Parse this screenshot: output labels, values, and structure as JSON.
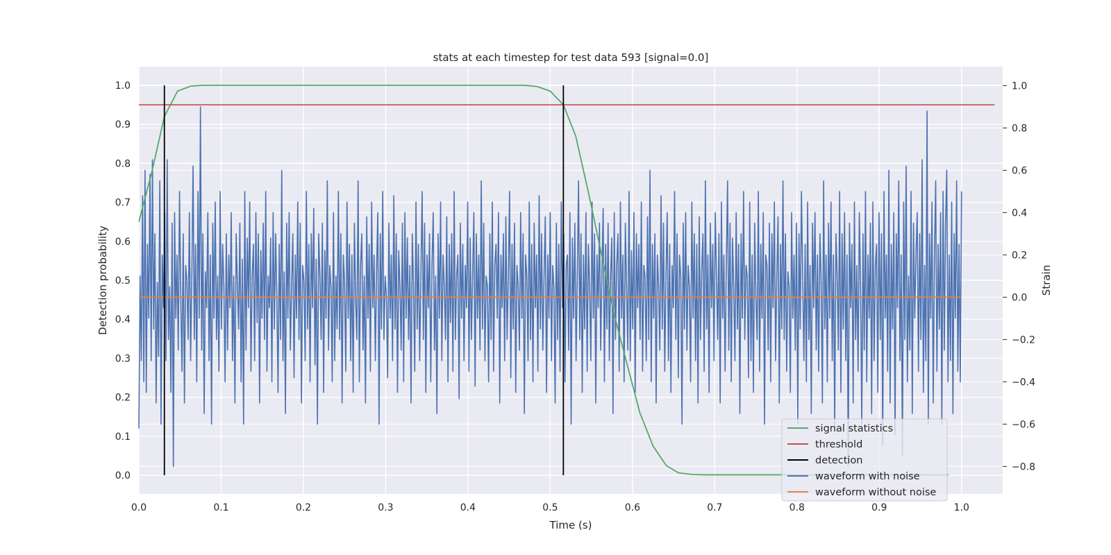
{
  "chart_data": {
    "type": "line",
    "title": "stats at each timestep for test data 593 [signal=0.0]",
    "xlabel": "Time (s)",
    "ylabel": "Detection probability",
    "y2label": "Strain",
    "xlim": [
      0.0,
      1.05
    ],
    "ylim": [
      -0.048,
      1.048
    ],
    "y2lim": [
      -0.93,
      1.09
    ],
    "xticks": [
      0.0,
      0.1,
      0.2,
      0.3,
      0.4,
      0.5,
      0.6,
      0.7,
      0.8,
      0.9,
      1.0
    ],
    "xtick_labels": [
      "0.0",
      "0.1",
      "0.2",
      "0.3",
      "0.4",
      "0.5",
      "0.6",
      "0.7",
      "0.8",
      "0.9",
      "1.0"
    ],
    "yticks": [
      0.0,
      0.1,
      0.2,
      0.3,
      0.4,
      0.5,
      0.6,
      0.7,
      0.8,
      0.9,
      1.0
    ],
    "ytick_labels": [
      "0.0",
      "0.1",
      "0.2",
      "0.3",
      "0.4",
      "0.5",
      "0.6",
      "0.7",
      "0.8",
      "0.9",
      "1.0"
    ],
    "y2ticks": [
      -0.8,
      -0.6,
      -0.4,
      -0.2,
      0.0,
      0.2,
      0.4,
      0.6,
      0.8,
      1.0
    ],
    "y2tick_labels": [
      "−0.8",
      "−0.6",
      "−0.4",
      "−0.2",
      "0.0",
      "0.2",
      "0.4",
      "0.6",
      "0.8",
      "1.0"
    ],
    "grid": true,
    "legend_position": "lower right",
    "series": [
      {
        "name": "signal statistics",
        "color": "#55a868",
        "axis": "left",
        "x": [
          0.0,
          0.016,
          0.031,
          0.047,
          0.063,
          0.078,
          0.094,
          0.2,
          0.3,
          0.4,
          0.469,
          0.484,
          0.5,
          0.516,
          0.531,
          0.547,
          0.563,
          0.578,
          0.594,
          0.609,
          0.625,
          0.641,
          0.656,
          0.672,
          0.688,
          0.75,
          0.85,
          0.95,
          0.984
        ],
        "values": [
          0.65,
          0.78,
          0.92,
          0.985,
          0.998,
          1.0,
          1.0,
          1.0,
          1.0,
          1.0,
          1.0,
          0.997,
          0.985,
          0.95,
          0.87,
          0.72,
          0.56,
          0.41,
          0.28,
          0.16,
          0.075,
          0.025,
          0.006,
          0.002,
          0.001,
          0.001,
          0.001,
          0.001,
          0.001
        ]
      },
      {
        "name": "threshold",
        "color": "#c44e52",
        "axis": "left",
        "x": [
          0.0,
          1.04
        ],
        "values": [
          0.95,
          0.95
        ]
      },
      {
        "name": "detection",
        "color": "#000000",
        "axis": "left",
        "segments": [
          {
            "x": 0.031,
            "from": 0.0,
            "to": 1.0
          },
          {
            "x": 0.516,
            "from": 0.0,
            "to": 1.0
          }
        ]
      },
      {
        "name": "waveform with noise",
        "color": "#4c72b0",
        "axis": "right",
        "x_start": 0.0,
        "x_end": 1.0,
        "values": [
          -0.62,
          0.1,
          -0.3,
          0.48,
          -0.4,
          0.6,
          -0.45,
          0.25,
          -0.1,
          0.58,
          -0.3,
          0.65,
          -0.15,
          0.3,
          -0.5,
          0.07,
          -0.28,
          0.55,
          -0.6,
          0.2,
          -0.05,
          0.4,
          -0.3,
          0.65,
          -0.2,
          0.05,
          -0.45,
          0.35,
          -0.8,
          0.4,
          -0.1,
          0.2,
          -0.25,
          0.5,
          0.0,
          -0.35,
          0.3,
          -0.5,
          0.15,
          0.08,
          -0.2,
          0.4,
          -0.3,
          0.1,
          0.62,
          -0.2,
          0.25,
          -0.4,
          0.5,
          -0.1,
          0.9,
          -0.25,
          0.3,
          -0.55,
          0.12,
          -0.05,
          0.4,
          -0.3,
          0.2,
          -0.6,
          0.35,
          -0.1,
          0.45,
          -0.2,
          0.1,
          -0.35,
          0.5,
          -0.15,
          0.25,
          0.05,
          -0.4,
          0.3,
          -0.25,
          0.2,
          -0.05,
          0.4,
          -0.3,
          0.1,
          -0.5,
          0.3,
          0.06,
          -0.15,
          0.35,
          -0.4,
          0.18,
          -0.6,
          0.5,
          -0.25,
          0.28,
          -0.05,
          0.45,
          -0.35,
          0.1,
          0.25,
          -0.3,
          0.4,
          -0.12,
          0.3,
          -0.5,
          0.22,
          -0.1,
          0.35,
          -0.2,
          0.5,
          -0.35,
          0.1,
          -0.05,
          0.28,
          -0.4,
          0.4,
          -0.15,
          0.3,
          0.02,
          -0.45,
          0.25,
          -0.2,
          0.6,
          -0.3,
          0.12,
          -0.55,
          0.35,
          -0.1,
          0.4,
          -0.25,
          0.05,
          0.3,
          -0.38,
          0.2,
          -0.1,
          0.45,
          -0.2,
          0.35,
          -0.5,
          0.15,
          0.08,
          -0.3,
          0.5,
          -0.15,
          0.25,
          -0.4,
          0.3,
          -0.05,
          0.42,
          -0.32,
          0.18,
          -0.6,
          0.3,
          0.1,
          -0.2,
          0.35,
          -0.45,
          0.22,
          -0.1,
          0.55,
          -0.25,
          0.15,
          0.05,
          -0.4,
          0.4,
          -0.3,
          0.1,
          -0.15,
          0.5,
          -0.2,
          0.3,
          -0.5,
          0.2,
          0.07,
          -0.35,
          0.45,
          -0.1,
          0.25,
          -0.3,
          0.2,
          -0.45,
          0.35,
          0.0,
          -0.2,
          0.55,
          -0.4,
          0.15,
          0.3,
          -0.25,
          0.1,
          -0.5,
          0.38,
          -0.1,
          0.25,
          -0.35,
          0.45,
          -0.05,
          0.2,
          -0.3,
          0.12,
          0.4,
          -0.6,
          0.3,
          -0.15,
          0.5,
          -0.2,
          0.1,
          0.0,
          -0.38,
          0.35,
          -0.1,
          0.2,
          -0.3,
          0.48,
          -0.15,
          0.3,
          -0.45,
          0.22,
          0.05,
          -0.25,
          0.35,
          -0.4,
          0.4,
          -0.1,
          0.28,
          -0.2,
          0.15,
          -0.5,
          0.3,
          0.06,
          -0.35,
          0.45,
          -0.15,
          0.25,
          -0.3,
          0.1,
          0.5,
          -0.2,
          0.35,
          -0.45,
          0.2,
          -0.05,
          0.3,
          -0.4,
          0.15,
          0.4,
          -0.25,
          0.1,
          -0.55,
          0.3,
          -0.1,
          0.45,
          -0.3,
          0.2,
          0.05,
          -0.2,
          0.38,
          -0.4,
          0.25,
          -0.12,
          0.3,
          -0.35,
          0.5,
          -0.2,
          0.1,
          0.2,
          -0.48,
          0.35,
          -0.1,
          0.25,
          -0.3,
          0.15,
          -0.05,
          0.45,
          -0.35,
          0.28,
          -0.2,
          0.1,
          0.4,
          -0.42,
          0.3,
          -0.1,
          0.2,
          -0.25,
          0.55,
          -0.15,
          0.35,
          -0.3,
          0.1,
          0.05,
          -0.4,
          0.3,
          -0.2,
          0.45,
          -0.35,
          0.15,
          0.25,
          -0.1,
          0.4,
          -0.5,
          0.2,
          -0.05,
          0.3,
          -0.3,
          0.38,
          -0.2,
          0.1,
          0.5,
          -0.38,
          0.25,
          -0.15,
          0.35,
          -0.45,
          0.15,
          0.05,
          -0.25,
          0.4,
          -0.1,
          0.3,
          -0.55,
          0.2,
          0.1,
          -0.3,
          0.45,
          -0.2,
          0.25,
          -0.4,
          0.35,
          -0.05,
          0.2,
          -0.35,
          0.48,
          -0.15,
          0.3,
          -0.25,
          0.1,
          0.38,
          -0.45,
          0.2,
          -0.1,
          0.4,
          -0.3,
          0.15,
          0.05,
          -0.5,
          0.35,
          -0.2,
          0.25,
          -0.35,
          0.45,
          -0.05,
          0.3,
          -0.4,
          0.15,
          0.2,
          -0.25,
          0.4,
          -0.6,
          0.28,
          -0.1,
          0.35,
          -0.3,
          0.1,
          0.55,
          -0.2,
          0.3,
          -0.45,
          0.2,
          -0.15,
          0.4,
          -0.35,
          0.25,
          0.05,
          -0.3,
          0.45,
          -0.1,
          0.3,
          -0.5,
          0.2,
          -0.05,
          0.35,
          -0.25,
          0.12,
          0.42,
          -0.4,
          0.25,
          -0.15,
          0.35,
          -0.3,
          0.1,
          0.28,
          -0.55,
          0.4,
          -0.2,
          0.15,
          0.3,
          -0.35,
          0.45,
          -0.1,
          0.2,
          -0.4,
          0.35,
          0.05,
          -0.25,
          0.5,
          -0.3,
          0.22,
          -0.15,
          0.4,
          -0.45,
          0.3,
          -0.05,
          0.25,
          -0.2,
          0.45,
          -0.35,
          0.15,
          0.1,
          -0.3,
          0.38,
          -0.2,
          0.6,
          -0.4,
          0.25,
          -0.1,
          0.3,
          -0.5,
          0.2,
          0.05,
          -0.25,
          0.48,
          -0.15,
          0.35,
          -0.35,
          0.1,
          0.4,
          -0.3,
          0.25,
          -0.45,
          0.15,
          -0.05,
          0.5,
          -0.2,
          0.3,
          -0.38,
          0.2,
          0.1,
          -0.6,
          0.35,
          -0.15,
          0.4,
          -0.25,
          0.15,
          0.05,
          -0.4,
          0.45,
          -0.1,
          0.3,
          -0.3,
          0.25,
          -0.5,
          0.38,
          -0.2,
          0.12,
          0.3,
          -0.35,
          0.55,
          -0.15,
          0.2,
          -0.45,
          0.35,
          -0.05,
          0.25,
          -0.3,
          0.4,
          0.1,
          -0.2,
          0.3,
          -0.5,
          0.45,
          -0.1,
          0.2,
          -0.35,
          0.15,
          0.55,
          -0.25,
          0.35,
          -0.4,
          0.28,
          0.05,
          -0.3,
          0.4,
          -0.15,
          0.25,
          -0.55,
          0.3,
          -0.1,
          0.5,
          -0.2,
          0.15,
          0.1,
          -0.38,
          0.45,
          -0.3,
          0.2,
          -0.45,
          0.35,
          0.0,
          -0.2,
          0.5,
          -0.35,
          0.25,
          -0.1,
          0.4,
          -0.6,
          0.2,
          0.15,
          -0.25,
          0.35,
          -0.4,
          0.3,
          -0.05,
          0.45,
          -0.3,
          0.1,
          0.38,
          -0.5,
          0.25,
          -0.15,
          0.55,
          -0.2,
          0.3,
          -0.35,
          0.12,
          0.05,
          -0.45,
          0.4,
          -0.1,
          0.2,
          -0.25,
          0.35,
          -0.6,
          0.3,
          -0.15,
          0.5,
          0.1,
          -0.3,
          0.25,
          -0.4,
          0.45,
          -0.2,
          0.15,
          -0.55,
          0.35,
          -0.05,
          0.4,
          -0.25,
          0.2,
          -0.35,
          0.3,
          0.08,
          -0.5,
          0.55,
          -0.15,
          0.2,
          -0.4,
          0.35,
          -0.1,
          0.45,
          -0.3,
          0.2,
          -0.62,
          0.3,
          0.1,
          -0.25,
          0.5,
          -0.45,
          0.3,
          -0.15,
          0.4,
          -0.3,
          0.2,
          -0.8,
          0.35,
          -0.05,
          0.25,
          -0.5,
          0.45,
          -0.2,
          0.15,
          -0.35,
          0.4,
          0.05,
          -0.6,
          0.3,
          -0.25,
          0.5,
          -0.4,
          0.2,
          -0.1,
          0.35,
          -0.55,
          0.45,
          -0.3,
          0.15,
          0.25,
          -0.45,
          0.4,
          -0.2,
          0.3,
          -0.7,
          0.5,
          -0.1,
          0.2,
          -0.35,
          0.6,
          -0.5,
          0.25,
          -0.15,
          0.4,
          -0.65,
          0.3,
          -0.05,
          0.55,
          -0.3,
          0.2,
          -0.75,
          0.45,
          -0.2,
          0.62,
          -0.4,
          0.1,
          -0.25,
          0.5,
          -0.55,
          0.35,
          -0.1,
          0.2,
          0.4,
          -0.35,
          0.3,
          -0.2,
          0.65,
          -0.45,
          0.15,
          -0.3,
          0.88,
          -0.6,
          0.3,
          -0.1,
          0.45,
          -0.5,
          0.2,
          0.55,
          -0.35,
          0.25,
          -0.15,
          0.4,
          -0.6,
          0.5,
          -0.25,
          0.35,
          0.6,
          -0.4,
          0.2,
          -0.3,
          0.45,
          -0.55,
          0.3,
          -0.1,
          0.55,
          -0.35,
          0.25,
          -0.4,
          0.5
        ]
      },
      {
        "name": "waveform without noise",
        "color": "#dd8452",
        "axis": "right",
        "x": [
          0.0,
          1.0
        ],
        "values": [
          0.0,
          0.0
        ]
      }
    ]
  }
}
